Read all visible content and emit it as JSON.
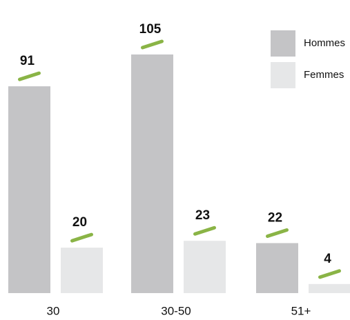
{
  "chart_data": {
    "type": "bar",
    "categories": [
      "30",
      "30-50",
      "51+"
    ],
    "series": [
      {
        "name": "Hommes",
        "color": "#c4c4c6",
        "values": [
          91,
          105,
          22
        ]
      },
      {
        "name": "Femmes",
        "color": "#e6e7e8",
        "values": [
          20,
          23,
          4
        ]
      }
    ],
    "accent_color": "#8ab446",
    "legend": "top-right"
  }
}
